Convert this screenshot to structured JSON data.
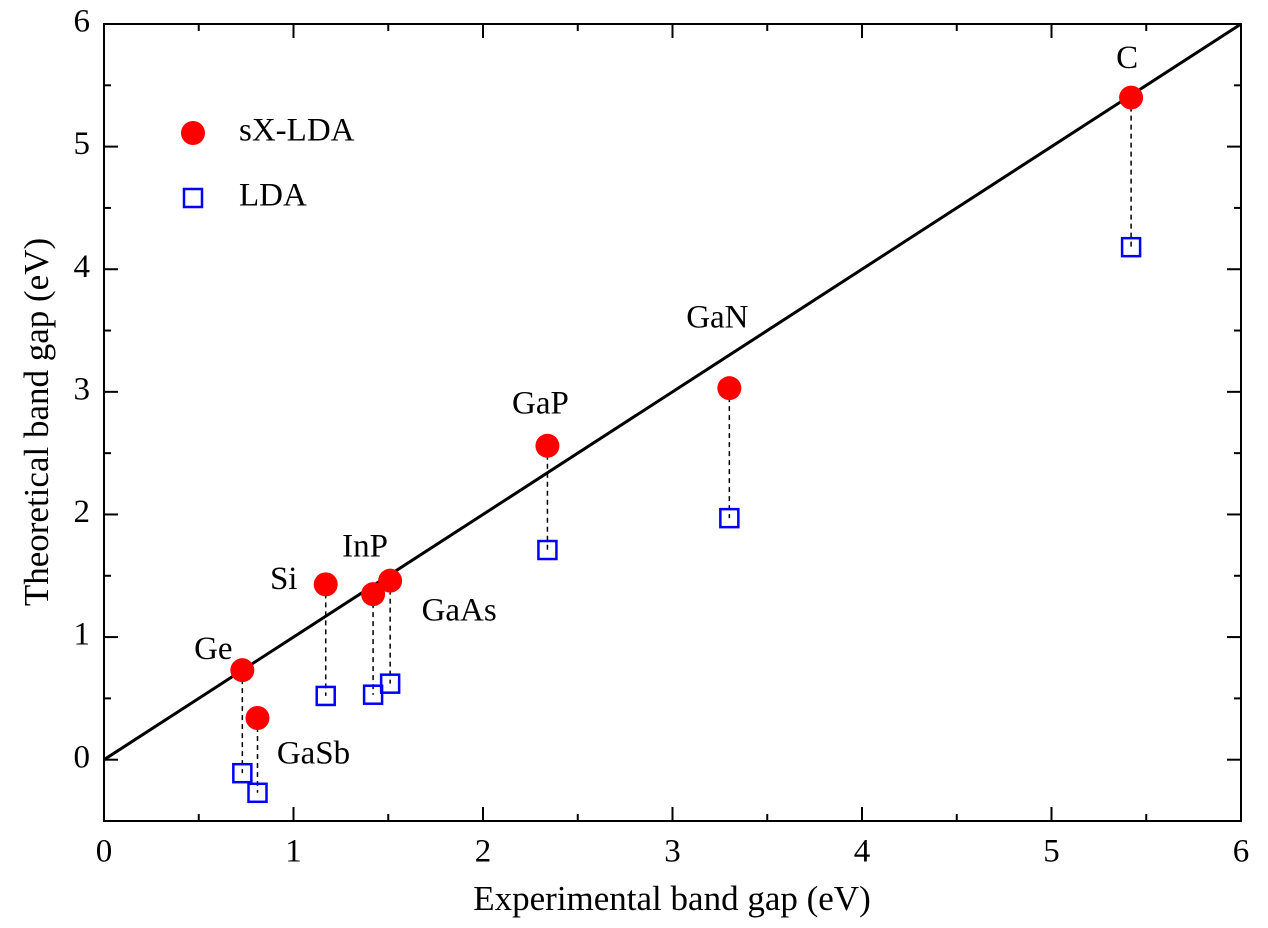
{
  "chart_data": {
    "type": "scatter",
    "xlabel": "Experimental band gap (eV)",
    "ylabel": "Theoretical band gap (eV)",
    "labels": [
      "Ge",
      "GaSb",
      "Si",
      "InP",
      "GaAs",
      "GaP",
      "GaN",
      "C"
    ],
    "x": [
      0.73,
      0.81,
      1.17,
      1.42,
      1.51,
      2.34,
      3.3,
      5.42
    ],
    "series": [
      {
        "name": "sX-LDA",
        "color": "#ff0000",
        "marker": "circle",
        "values": [
          0.73,
          0.34,
          1.43,
          1.35,
          1.46,
          2.56,
          3.03,
          5.4
        ]
      },
      {
        "name": "LDA",
        "color": "#0000ff",
        "marker": "square",
        "values": [
          -0.11,
          -0.27,
          0.52,
          0.53,
          0.62,
          1.71,
          1.97,
          4.18
        ]
      }
    ],
    "xlim": [
      0,
      6
    ],
    "ylim": [
      -0.5,
      6
    ],
    "xticks": [
      0,
      1,
      2,
      3,
      4,
      5,
      6
    ],
    "yticks": [
      0,
      1,
      2,
      3,
      4,
      5,
      6
    ],
    "legend": "upper left"
  }
}
